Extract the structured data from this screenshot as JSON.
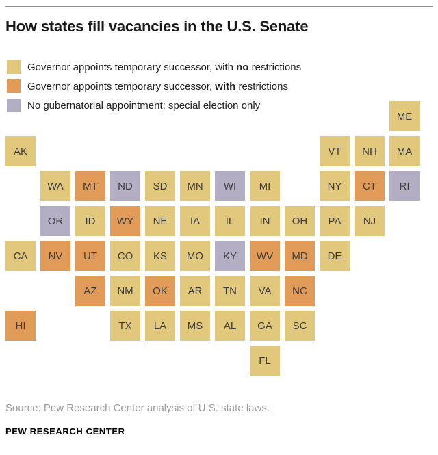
{
  "title": "How states fill vacancies in the U.S. Senate",
  "legend": {
    "items": [
      {
        "id": "no_restrictions",
        "prefix": "Governor appoints temporary successor, with ",
        "bold": "no",
        "suffix": " restrictions"
      },
      {
        "id": "with_restrictions",
        "prefix": "Governor appoints temporary successor, ",
        "bold": "with",
        "suffix": " restrictions"
      },
      {
        "id": "special_election",
        "prefix": "No gubernatorial appointment; special election only",
        "bold": "",
        "suffix": ""
      }
    ]
  },
  "source": "Source: Pew Research Center analysis of U.S. state laws.",
  "brand": "PEW RESEARCH CENTER",
  "chart_data": {
    "type": "heatmap",
    "subtype": "us_state_tile_grid_map",
    "title": "How states fill vacancies in the U.S. Senate",
    "legend_position": "top-left",
    "grid": {
      "rows": 8,
      "cols": 12
    },
    "categories": [
      {
        "id": "no_restrictions",
        "label": "Governor appoints temporary successor, with no restrictions",
        "color": "#e2c87d"
      },
      {
        "id": "with_restrictions",
        "label": "Governor appoints temporary successor, with restrictions",
        "color": "#e09b59"
      },
      {
        "id": "special_election",
        "label": "No gubernatorial appointment; special election only",
        "color": "#b3aec4"
      }
    ],
    "states": [
      {
        "code": "ME",
        "row": 1,
        "col": 12,
        "category": "no_restrictions"
      },
      {
        "code": "AK",
        "row": 2,
        "col": 1,
        "category": "no_restrictions"
      },
      {
        "code": "VT",
        "row": 2,
        "col": 10,
        "category": "no_restrictions"
      },
      {
        "code": "NH",
        "row": 2,
        "col": 11,
        "category": "no_restrictions"
      },
      {
        "code": "MA",
        "row": 2,
        "col": 12,
        "category": "no_restrictions"
      },
      {
        "code": "WA",
        "row": 3,
        "col": 2,
        "category": "no_restrictions"
      },
      {
        "code": "MT",
        "row": 3,
        "col": 3,
        "category": "with_restrictions"
      },
      {
        "code": "ND",
        "row": 3,
        "col": 4,
        "category": "special_election"
      },
      {
        "code": "SD",
        "row": 3,
        "col": 5,
        "category": "no_restrictions"
      },
      {
        "code": "MN",
        "row": 3,
        "col": 6,
        "category": "no_restrictions"
      },
      {
        "code": "WI",
        "row": 3,
        "col": 7,
        "category": "special_election"
      },
      {
        "code": "MI",
        "row": 3,
        "col": 8,
        "category": "no_restrictions"
      },
      {
        "code": "NY",
        "row": 3,
        "col": 10,
        "category": "no_restrictions"
      },
      {
        "code": "CT",
        "row": 3,
        "col": 11,
        "category": "with_restrictions"
      },
      {
        "code": "RI",
        "row": 3,
        "col": 12,
        "category": "special_election"
      },
      {
        "code": "OR",
        "row": 4,
        "col": 2,
        "category": "special_election"
      },
      {
        "code": "ID",
        "row": 4,
        "col": 3,
        "category": "no_restrictions"
      },
      {
        "code": "WY",
        "row": 4,
        "col": 4,
        "category": "with_restrictions"
      },
      {
        "code": "NE",
        "row": 4,
        "col": 5,
        "category": "no_restrictions"
      },
      {
        "code": "IA",
        "row": 4,
        "col": 6,
        "category": "no_restrictions"
      },
      {
        "code": "IL",
        "row": 4,
        "col": 7,
        "category": "no_restrictions"
      },
      {
        "code": "IN",
        "row": 4,
        "col": 8,
        "category": "no_restrictions"
      },
      {
        "code": "OH",
        "row": 4,
        "col": 9,
        "category": "no_restrictions"
      },
      {
        "code": "PA",
        "row": 4,
        "col": 10,
        "category": "no_restrictions"
      },
      {
        "code": "NJ",
        "row": 4,
        "col": 11,
        "category": "no_restrictions"
      },
      {
        "code": "CA",
        "row": 5,
        "col": 1,
        "category": "no_restrictions"
      },
      {
        "code": "NV",
        "row": 5,
        "col": 2,
        "category": "with_restrictions"
      },
      {
        "code": "UT",
        "row": 5,
        "col": 3,
        "category": "with_restrictions"
      },
      {
        "code": "CO",
        "row": 5,
        "col": 4,
        "category": "no_restrictions"
      },
      {
        "code": "KS",
        "row": 5,
        "col": 5,
        "category": "no_restrictions"
      },
      {
        "code": "MO",
        "row": 5,
        "col": 6,
        "category": "no_restrictions"
      },
      {
        "code": "KY",
        "row": 5,
        "col": 7,
        "category": "special_election"
      },
      {
        "code": "WV",
        "row": 5,
        "col": 8,
        "category": "with_restrictions"
      },
      {
        "code": "MD",
        "row": 5,
        "col": 9,
        "category": "with_restrictions"
      },
      {
        "code": "DE",
        "row": 5,
        "col": 10,
        "category": "no_restrictions"
      },
      {
        "code": "AZ",
        "row": 6,
        "col": 3,
        "category": "with_restrictions"
      },
      {
        "code": "NM",
        "row": 6,
        "col": 4,
        "category": "no_restrictions"
      },
      {
        "code": "OK",
        "row": 6,
        "col": 5,
        "category": "with_restrictions"
      },
      {
        "code": "AR",
        "row": 6,
        "col": 6,
        "category": "no_restrictions"
      },
      {
        "code": "TN",
        "row": 6,
        "col": 7,
        "category": "no_restrictions"
      },
      {
        "code": "VA",
        "row": 6,
        "col": 8,
        "category": "no_restrictions"
      },
      {
        "code": "NC",
        "row": 6,
        "col": 9,
        "category": "with_restrictions"
      },
      {
        "code": "HI",
        "row": 7,
        "col": 1,
        "category": "with_restrictions"
      },
      {
        "code": "TX",
        "row": 7,
        "col": 4,
        "category": "no_restrictions"
      },
      {
        "code": "LA",
        "row": 7,
        "col": 5,
        "category": "no_restrictions"
      },
      {
        "code": "MS",
        "row": 7,
        "col": 6,
        "category": "no_restrictions"
      },
      {
        "code": "AL",
        "row": 7,
        "col": 7,
        "category": "no_restrictions"
      },
      {
        "code": "GA",
        "row": 7,
        "col": 8,
        "category": "no_restrictions"
      },
      {
        "code": "SC",
        "row": 7,
        "col": 9,
        "category": "no_restrictions"
      },
      {
        "code": "FL",
        "row": 8,
        "col": 8,
        "category": "no_restrictions"
      }
    ]
  }
}
